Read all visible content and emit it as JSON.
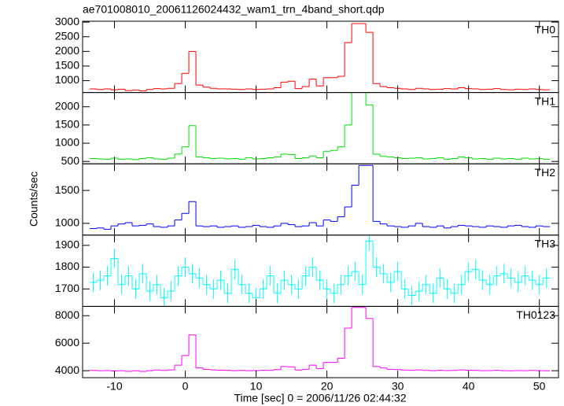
{
  "chart_data": {
    "type": "step",
    "title": "ae701008010_20061126024432_wam1_trn_4band_short.qdp",
    "xlabel": "Time [sec] 0 = 2006/11/26 02:44:32",
    "ylabel": "Counts/sec",
    "xlim": [
      -14.5,
      52.7
    ],
    "xticks": [
      -10,
      0,
      10,
      20,
      30,
      40,
      50
    ],
    "bin_width": 1,
    "x": [
      -13,
      -12,
      -11,
      -10,
      -9,
      -8,
      -7,
      -6,
      -5,
      -4,
      -3,
      -2,
      -1,
      0,
      1,
      2,
      3,
      4,
      5,
      6,
      7,
      8,
      9,
      10,
      11,
      12,
      13,
      14,
      15,
      16,
      17,
      18,
      19,
      20,
      21,
      22,
      23,
      24,
      25,
      26,
      27,
      28,
      29,
      30,
      31,
      32,
      33,
      34,
      35,
      36,
      37,
      38,
      39,
      40,
      41,
      42,
      43,
      44,
      45,
      46,
      47,
      48,
      49,
      50,
      51
    ],
    "panels": [
      {
        "label": "TH0",
        "color": "#ff0000",
        "ylim": [
          595,
          3030
        ],
        "yticks": [
          1000,
          1500,
          2000,
          2500,
          3000
        ],
        "values": [
          720,
          700,
          720,
          690,
          710,
          660,
          680,
          650,
          700,
          730,
          720,
          740,
          900,
          1250,
          2000,
          850,
          780,
          740,
          720,
          720,
          710,
          700,
          720,
          700,
          710,
          720,
          760,
          950,
          980,
          730,
          800,
          1050,
          820,
          1100,
          1100,
          1150,
          2300,
          2950,
          2950,
          2650,
          900,
          800,
          760,
          740,
          720,
          700,
          740,
          720,
          700,
          710,
          730,
          720,
          760,
          730,
          720,
          700,
          710,
          730,
          700,
          690,
          710,
          700,
          720,
          700,
          690
        ]
      },
      {
        "label": "TH1",
        "color": "#00e000",
        "ylim": [
          435,
          2391
        ],
        "yticks": [
          500,
          1000,
          1500,
          2000
        ],
        "values": [
          580,
          570,
          560,
          590,
          560,
          570,
          550,
          580,
          600,
          570,
          560,
          590,
          700,
          900,
          1480,
          620,
          600,
          580,
          590,
          570,
          580,
          560,
          600,
          570,
          580,
          600,
          620,
          700,
          690,
          580,
          600,
          650,
          600,
          780,
          800,
          900,
          1500,
          2400,
          2400,
          2050,
          700,
          640,
          620,
          600,
          580,
          590,
          600,
          570,
          580,
          600,
          560,
          580,
          620,
          600,
          570,
          580,
          560,
          590,
          570,
          580,
          560,
          590,
          570,
          580,
          560
        ]
      },
      {
        "label": "TH2",
        "color": "#0000ff",
        "ylim": [
          821,
          1905
        ],
        "yticks": [
          1000,
          1500
        ],
        "values": [
          920,
          930,
          910,
          960,
          990,
          1010,
          960,
          970,
          990,
          950,
          940,
          960,
          1050,
          1150,
          1330,
          960,
          950,
          960,
          940,
          950,
          960,
          940,
          950,
          970,
          950,
          940,
          960,
          1000,
          980,
          950,
          960,
          1010,
          960,
          1050,
          1030,
          1100,
          1250,
          1580,
          1880,
          1880,
          1030,
          990,
          960,
          950,
          940,
          960,
          1000,
          950,
          940,
          960,
          930,
          950,
          970,
          960,
          950,
          940,
          960,
          950,
          940,
          960,
          970,
          950,
          940,
          960,
          950
        ]
      },
      {
        "label": "TH3",
        "color": "#00ffff",
        "ylim": [
          1620,
          1947
        ],
        "yticks": [
          1700,
          1800,
          1900
        ],
        "values": [
          1730,
          1740,
          1760,
          1840,
          1720,
          1760,
          1700,
          1770,
          1690,
          1720,
          1660,
          1690,
          1760,
          1800,
          1770,
          1750,
          1720,
          1700,
          1740,
          1680,
          1790,
          1720,
          1680,
          1660,
          1700,
          1760,
          1680,
          1740,
          1720,
          1700,
          1760,
          1800,
          1740,
          1700,
          1680,
          1720,
          1760,
          1780,
          1720,
          1920,
          1800,
          1770,
          1730,
          1780,
          1700,
          1670,
          1690,
          1720,
          1680,
          1750,
          1700,
          1680,
          1720,
          1780,
          1790,
          1740,
          1720,
          1760,
          1770,
          1750,
          1730,
          1760,
          1740,
          1720,
          1750
        ],
        "errors": [
          45,
          45,
          45,
          45,
          45,
          45,
          45,
          45,
          45,
          45,
          45,
          45,
          45,
          45,
          45,
          45,
          45,
          45,
          45,
          45,
          45,
          45,
          45,
          45,
          45,
          45,
          45,
          45,
          45,
          45,
          45,
          45,
          45,
          45,
          45,
          45,
          45,
          45,
          45,
          45,
          45,
          45,
          45,
          45,
          45,
          45,
          45,
          45,
          45,
          45,
          45,
          45,
          45,
          45,
          45,
          45,
          45,
          45,
          45,
          45,
          45,
          45,
          45,
          45,
          45
        ]
      },
      {
        "label": "TH0123",
        "color": "#ff00ff",
        "ylim": [
          3493,
          8676
        ],
        "yticks": [
          4000,
          6000,
          8000
        ],
        "values": [
          4020,
          4000,
          4010,
          3980,
          4000,
          3960,
          3990,
          3950,
          4000,
          4050,
          4020,
          4060,
          4400,
          5100,
          6600,
          4200,
          4100,
          4060,
          4040,
          4030,
          4000,
          4020,
          4000,
          4010,
          4030,
          4020,
          4080,
          4300,
          4280,
          4050,
          4100,
          4400,
          4150,
          4600,
          4600,
          4900,
          7100,
          8600,
          8600,
          7800,
          4300,
          4200,
          4100,
          4080,
          4050,
          4030,
          4060,
          4020,
          4000,
          4030,
          4010,
          4020,
          4060,
          4040,
          4020,
          4000,
          4010,
          4030,
          4000,
          3990,
          4010,
          4000,
          4020,
          4000,
          3990
        ]
      }
    ]
  }
}
